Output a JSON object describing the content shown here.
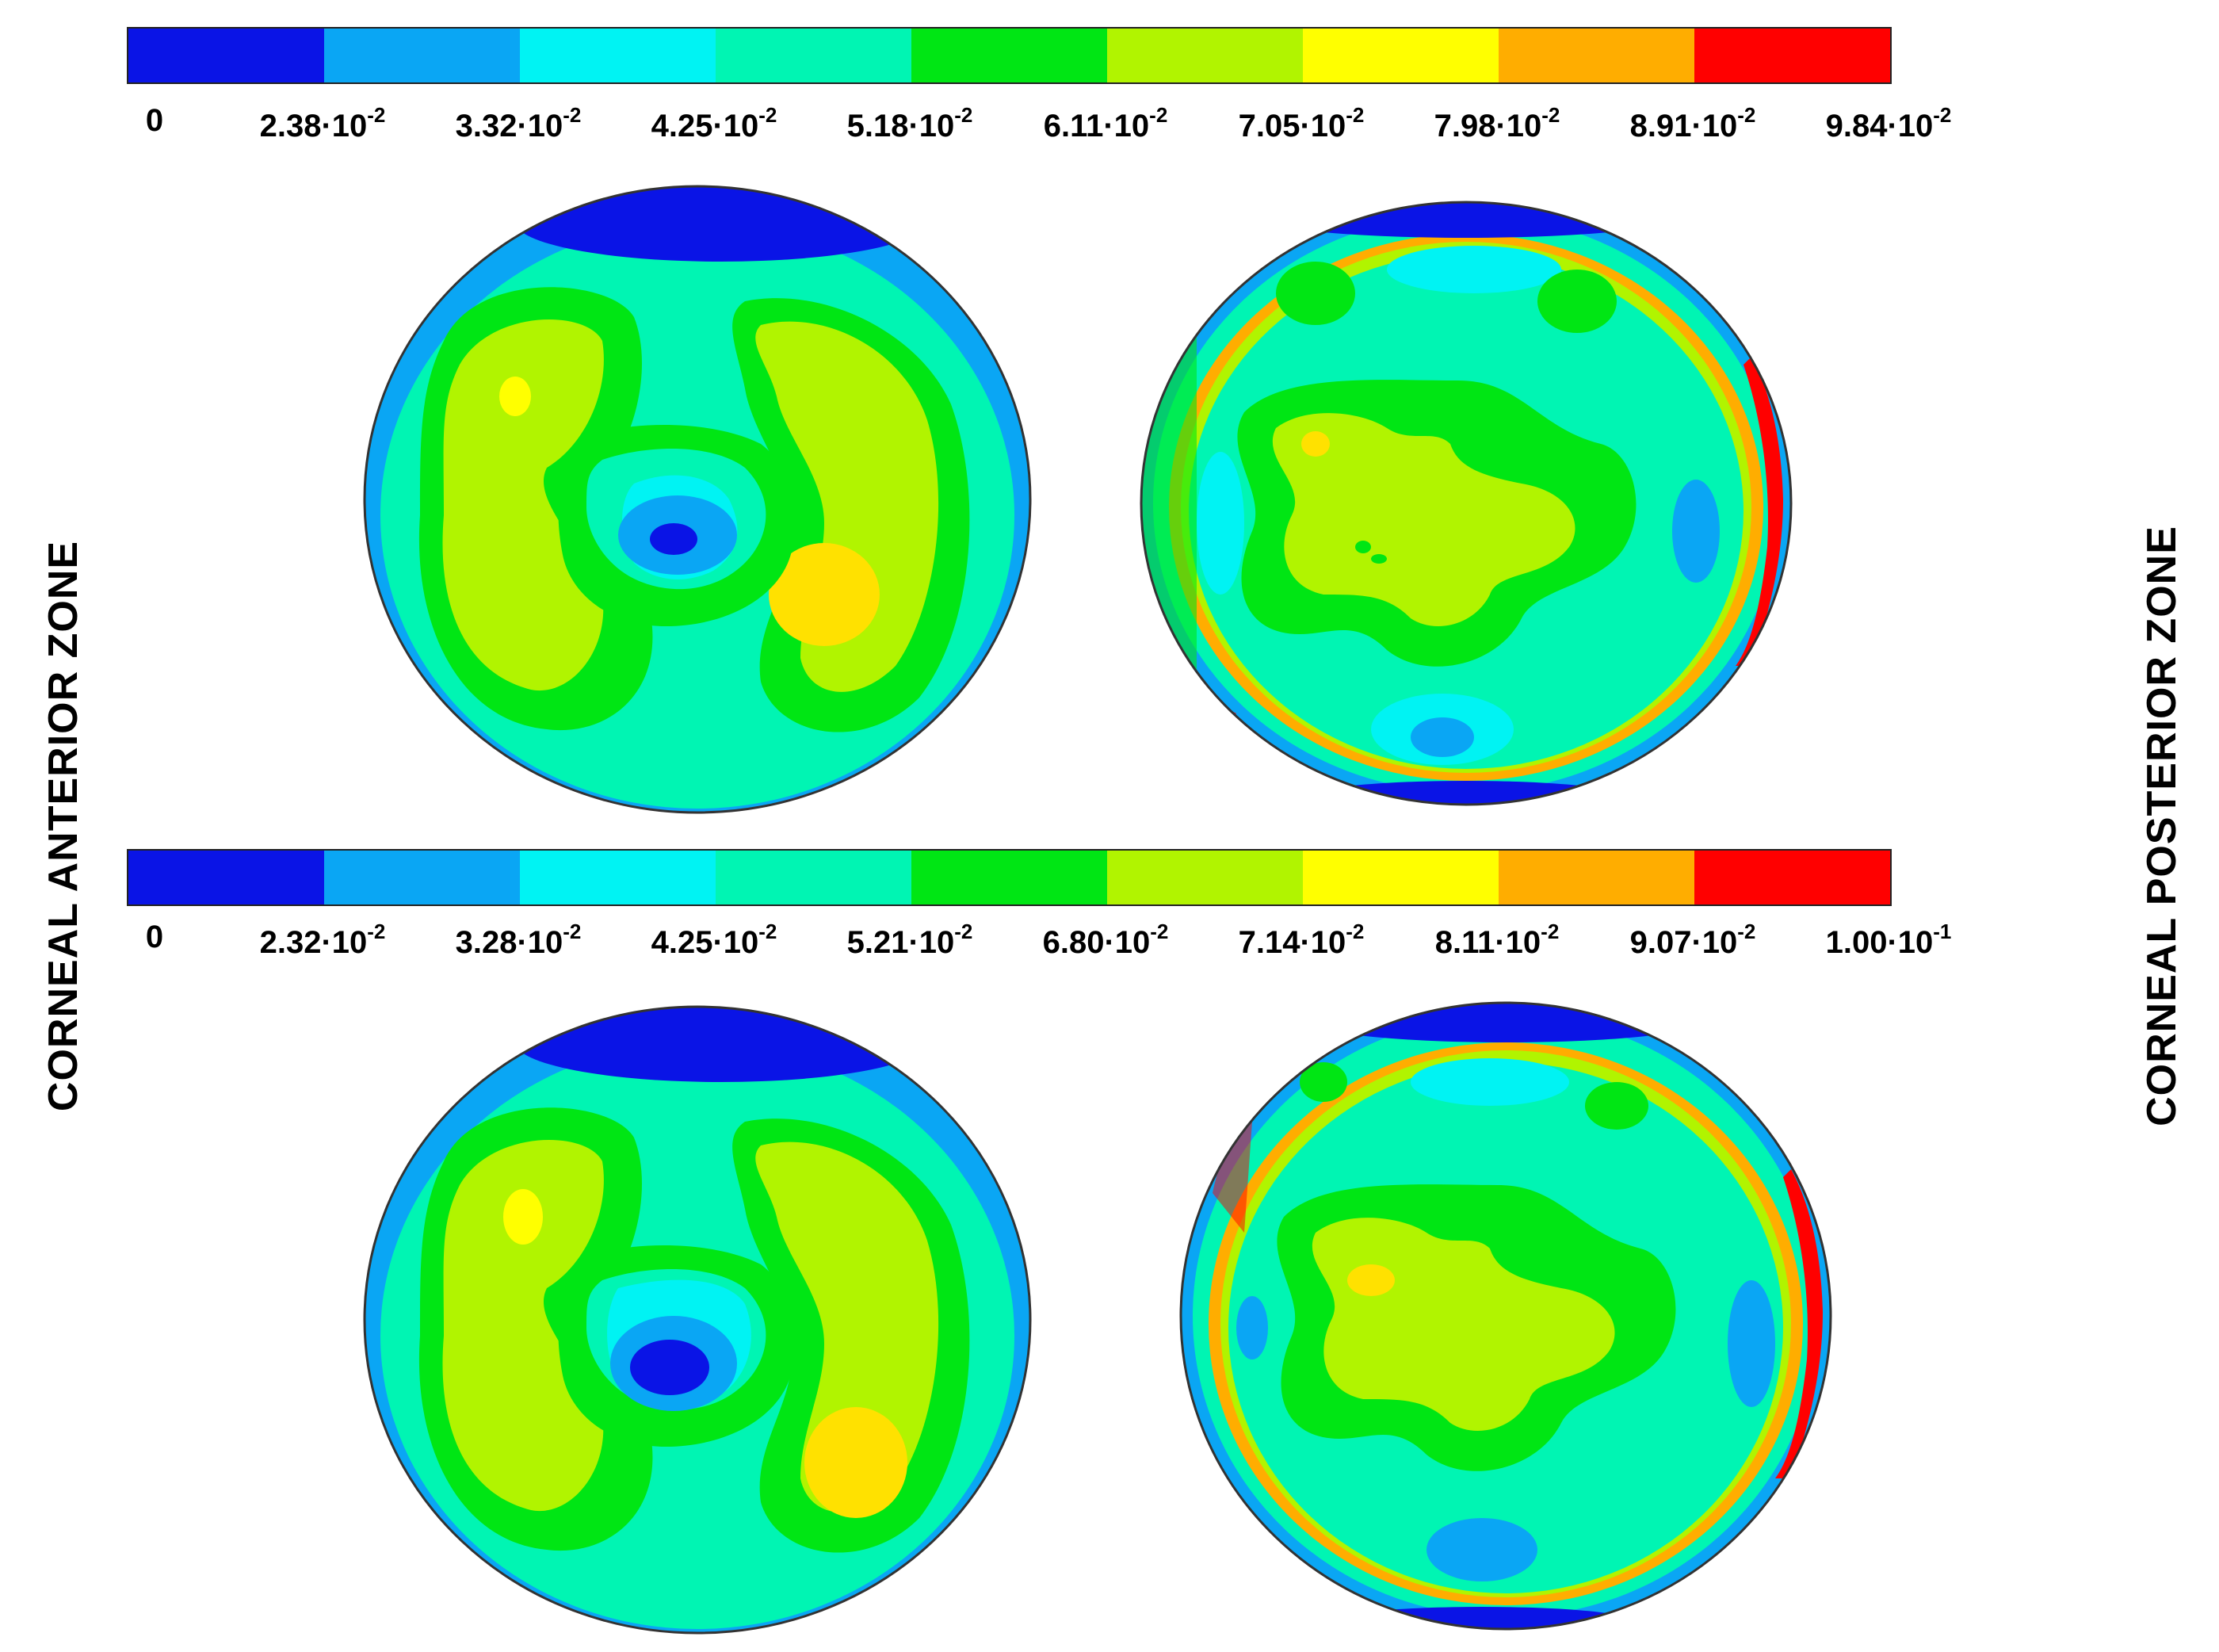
{
  "colors": [
    "#0a14e6",
    "#0aa6f4",
    "#00f3f3",
    "#00f5b3",
    "#00e614",
    "#b1f400",
    "#ffff00",
    "#ffad00",
    "#ff0000"
  ],
  "top_legend": {
    "ticks": [
      "0",
      "2.38·10",
      "3.32·10",
      "4.25·10",
      "5.18·10",
      "6.11·10",
      "7.05·10",
      "7.98·10",
      "8.91·10",
      "9.84·10"
    ],
    "exponents": [
      "",
      "-2",
      "-2",
      "-2",
      "-2",
      "-2",
      "-2",
      "-2",
      "-2",
      "-2"
    ]
  },
  "bottom_legend": {
    "ticks": [
      "0",
      "2.32·10",
      "3.28·10",
      "4.25·10",
      "5.21·10",
      "6.80·10",
      "7.14·10",
      "8.11·10",
      "9.07·10",
      "1.00·10"
    ],
    "exponents": [
      "",
      "-2",
      "-2",
      "-2",
      "-2",
      "-2",
      "-2",
      "-2",
      "-2",
      "-1"
    ]
  },
  "labels": {
    "left": "CORNEAL ANTERIOR ZONE",
    "right": "CORNEAL  POSTERIOR  ZONE"
  }
}
